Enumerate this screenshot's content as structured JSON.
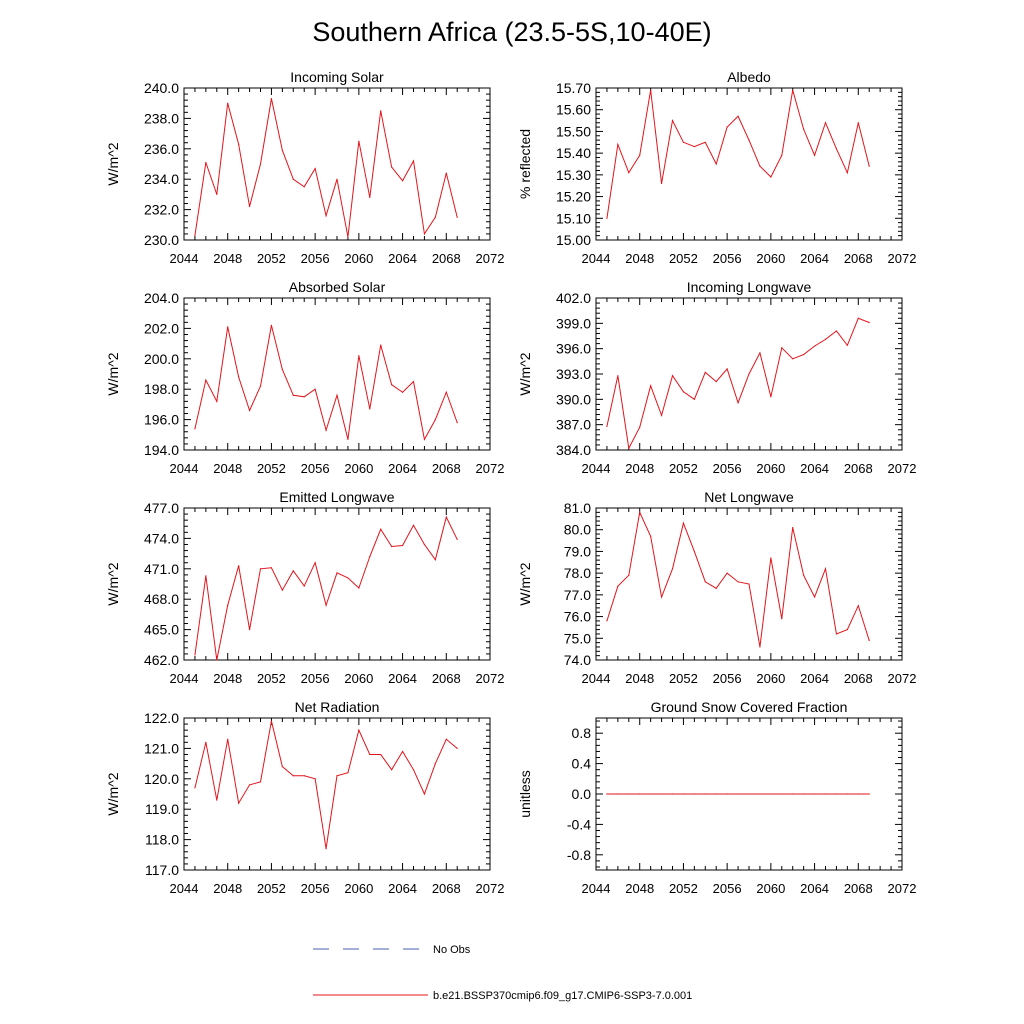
{
  "figure": {
    "title": "Southern Africa (23.5-5S,10-40E)"
  },
  "legend": {
    "obs_label": "No Obs",
    "obs_color": "#4a5fb0",
    "model_label": "b.e21.BSSP370cmip6.f09_g17.CMIP6-SSP3-7.0.001",
    "model_color": "#e4141b"
  },
  "chart_data": [
    {
      "type": "line",
      "title": "Incoming Solar",
      "ylabel": "W/m^2",
      "xlim": [
        2044,
        2072
      ],
      "ylim": [
        230,
        240
      ],
      "xticks": [
        2044,
        2048,
        2052,
        2056,
        2060,
        2064,
        2068,
        2072
      ],
      "yticks": [
        "230.0",
        "232.0",
        "234.0",
        "236.0",
        "238.0",
        "240.0"
      ],
      "x": [
        2045,
        2046,
        2047,
        2048,
        2049,
        2050,
        2051,
        2052,
        2053,
        2054,
        2055,
        2056,
        2057,
        2058,
        2059,
        2060,
        2061,
        2062,
        2063,
        2064,
        2065,
        2066,
        2067,
        2068,
        2069
      ],
      "series": [
        {
          "values": [
            230.3,
            235.1,
            233.0,
            239.0,
            236.3,
            232.2,
            235.0,
            239.3,
            235.9,
            234.0,
            233.5,
            234.7,
            231.6,
            234.0,
            230.2,
            236.5,
            232.8,
            238.5,
            234.8,
            233.9,
            235.2,
            230.4,
            231.5,
            234.4,
            231.5
          ]
        }
      ]
    },
    {
      "type": "line",
      "title": "Albedo",
      "ylabel": "% reflected",
      "xlim": [
        2044,
        2072
      ],
      "ylim": [
        15.0,
        15.7
      ],
      "xticks": [
        2044,
        2048,
        2052,
        2056,
        2060,
        2064,
        2068,
        2072
      ],
      "yticks": [
        "15.00",
        "15.10",
        "15.20",
        "15.30",
        "15.40",
        "15.50",
        "15.60",
        "15.70"
      ],
      "x": [
        2045,
        2046,
        2047,
        2048,
        2049,
        2050,
        2051,
        2052,
        2053,
        2054,
        2055,
        2056,
        2057,
        2058,
        2059,
        2060,
        2061,
        2062,
        2063,
        2064,
        2065,
        2066,
        2067,
        2068,
        2069
      ],
      "series": [
        {
          "values": [
            15.1,
            15.44,
            15.31,
            15.39,
            15.69,
            15.26,
            15.55,
            15.45,
            15.43,
            15.45,
            15.35,
            15.52,
            15.57,
            15.46,
            15.34,
            15.29,
            15.39,
            15.69,
            15.51,
            15.39,
            15.54,
            15.42,
            15.31,
            15.54,
            15.34
          ]
        }
      ]
    },
    {
      "type": "line",
      "title": "Absorbed Solar",
      "ylabel": "W/m^2",
      "xlim": [
        2044,
        2072
      ],
      "ylim": [
        194,
        204
      ],
      "xticks": [
        2044,
        2048,
        2052,
        2056,
        2060,
        2064,
        2068,
        2072
      ],
      "yticks": [
        "194.0",
        "196.0",
        "198.0",
        "200.0",
        "202.0",
        "204.0"
      ],
      "x": [
        2045,
        2046,
        2047,
        2048,
        2049,
        2050,
        2051,
        2052,
        2053,
        2054,
        2055,
        2056,
        2057,
        2058,
        2059,
        2060,
        2061,
        2062,
        2063,
        2064,
        2065,
        2066,
        2067,
        2068,
        2069
      ],
      "series": [
        {
          "values": [
            195.4,
            198.6,
            197.2,
            202.1,
            198.8,
            196.6,
            198.2,
            202.2,
            199.3,
            197.6,
            197.5,
            198.0,
            195.3,
            197.6,
            194.7,
            200.2,
            196.7,
            200.9,
            198.3,
            197.8,
            198.5,
            194.7,
            196.0,
            197.8,
            195.8
          ]
        }
      ]
    },
    {
      "type": "line",
      "title": "Incoming Longwave",
      "ylabel": "W/m^2",
      "xlim": [
        2044,
        2072
      ],
      "ylim": [
        384,
        402
      ],
      "xticks": [
        2044,
        2048,
        2052,
        2056,
        2060,
        2064,
        2068,
        2072
      ],
      "yticks": [
        "384.0",
        "387.0",
        "390.0",
        "393.0",
        "396.0",
        "399.0",
        "402.0"
      ],
      "x": [
        2045,
        2046,
        2047,
        2048,
        2049,
        2050,
        2051,
        2052,
        2053,
        2054,
        2055,
        2056,
        2057,
        2058,
        2059,
        2060,
        2061,
        2062,
        2063,
        2064,
        2065,
        2066,
        2067,
        2068,
        2069
      ],
      "series": [
        {
          "values": [
            386.8,
            392.8,
            384.2,
            386.7,
            391.6,
            388.1,
            392.8,
            390.9,
            390.0,
            393.2,
            392.1,
            393.6,
            389.6,
            393.0,
            395.5,
            390.3,
            396.1,
            394.8,
            395.3,
            396.3,
            397.1,
            398.1,
            396.4,
            399.6,
            399.1
          ]
        }
      ]
    },
    {
      "type": "line",
      "title": "Emitted Longwave",
      "ylabel": "W/m^2",
      "xlim": [
        2044,
        2072
      ],
      "ylim": [
        462,
        477
      ],
      "xticks": [
        2044,
        2048,
        2052,
        2056,
        2060,
        2064,
        2068,
        2072
      ],
      "yticks": [
        "462.0",
        "465.0",
        "468.0",
        "471.0",
        "474.0",
        "477.0"
      ],
      "x": [
        2045,
        2046,
        2047,
        2048,
        2049,
        2050,
        2051,
        2052,
        2053,
        2054,
        2055,
        2056,
        2057,
        2058,
        2059,
        2060,
        2061,
        2062,
        2063,
        2064,
        2065,
        2066,
        2067,
        2068,
        2069
      ],
      "series": [
        {
          "values": [
            462.5,
            470.3,
            462.0,
            467.4,
            471.3,
            465.0,
            471.0,
            471.1,
            468.9,
            470.8,
            469.3,
            471.6,
            467.4,
            470.6,
            470.1,
            469.1,
            472.2,
            474.9,
            473.2,
            473.3,
            475.3,
            473.4,
            471.9,
            476.1,
            473.9
          ]
        }
      ]
    },
    {
      "type": "line",
      "title": "Net Longwave",
      "ylabel": "W/m^2",
      "xlim": [
        2044,
        2072
      ],
      "ylim": [
        74,
        81
      ],
      "xticks": [
        2044,
        2048,
        2052,
        2056,
        2060,
        2064,
        2068,
        2072
      ],
      "yticks": [
        "74.0",
        "75.0",
        "76.0",
        "77.0",
        "78.0",
        "79.0",
        "80.0",
        "81.0"
      ],
      "x": [
        2045,
        2046,
        2047,
        2048,
        2049,
        2050,
        2051,
        2052,
        2053,
        2054,
        2055,
        2056,
        2057,
        2058,
        2059,
        2060,
        2061,
        2062,
        2063,
        2064,
        2065,
        2066,
        2067,
        2068,
        2069
      ],
      "series": [
        {
          "values": [
            75.8,
            77.4,
            77.9,
            80.8,
            79.7,
            76.9,
            78.2,
            80.3,
            79.0,
            77.6,
            77.3,
            78.0,
            77.6,
            77.5,
            74.6,
            78.7,
            75.9,
            80.1,
            77.9,
            76.9,
            78.2,
            75.2,
            75.4,
            76.5,
            74.9
          ]
        }
      ]
    },
    {
      "type": "line",
      "title": "Net Radiation",
      "ylabel": "W/m^2",
      "xlim": [
        2044,
        2072
      ],
      "ylim": [
        117,
        122
      ],
      "xticks": [
        2044,
        2048,
        2052,
        2056,
        2060,
        2064,
        2068,
        2072
      ],
      "yticks": [
        "117.0",
        "118.0",
        "119.0",
        "120.0",
        "121.0",
        "122.0"
      ],
      "x": [
        2045,
        2046,
        2047,
        2048,
        2049,
        2050,
        2051,
        2052,
        2053,
        2054,
        2055,
        2056,
        2057,
        2058,
        2059,
        2060,
        2061,
        2062,
        2063,
        2064,
        2065,
        2066,
        2067,
        2068,
        2069
      ],
      "series": [
        {
          "values": [
            119.7,
            121.2,
            119.3,
            121.3,
            119.2,
            119.8,
            119.9,
            121.9,
            120.4,
            120.1,
            120.1,
            120.0,
            117.7,
            120.1,
            120.2,
            121.6,
            120.8,
            120.8,
            120.3,
            120.9,
            120.3,
            119.5,
            120.5,
            121.3,
            121.0
          ]
        }
      ]
    },
    {
      "type": "line",
      "title": "Ground Snow Covered Fraction",
      "ylabel": "unitless",
      "xlim": [
        2044,
        2072
      ],
      "ylim": [
        -1.0,
        1.0
      ],
      "xticks": [
        2044,
        2048,
        2052,
        2056,
        2060,
        2064,
        2068,
        2072
      ],
      "yticks": [
        "-0.8",
        "-0.4",
        "0.0",
        "0.4",
        "0.8"
      ],
      "ytick_values": [
        -0.8,
        -0.4,
        0.0,
        0.4,
        0.8
      ],
      "x": [
        2045,
        2046,
        2047,
        2048,
        2049,
        2050,
        2051,
        2052,
        2053,
        2054,
        2055,
        2056,
        2057,
        2058,
        2059,
        2060,
        2061,
        2062,
        2063,
        2064,
        2065,
        2066,
        2067,
        2068,
        2069
      ],
      "series": [
        {
          "values": [
            0,
            0,
            0,
            0,
            0,
            0,
            0,
            0,
            0,
            0,
            0,
            0,
            0,
            0,
            0,
            0,
            0,
            0,
            0,
            0,
            0,
            0,
            0,
            0,
            0
          ]
        }
      ]
    }
  ]
}
